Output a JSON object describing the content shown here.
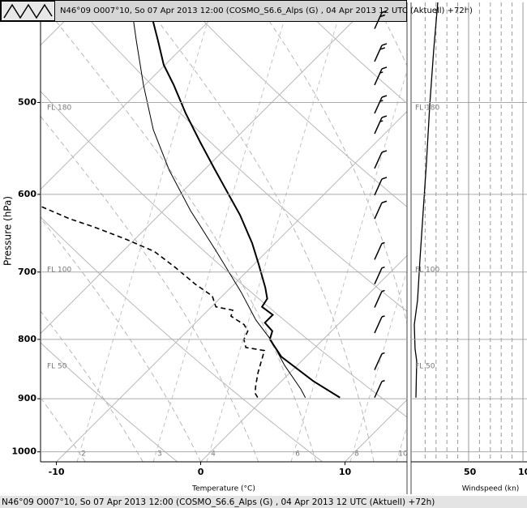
{
  "header": {
    "title": "N46°09 O007°10, So 07 Apr 2013 12:00 (COSMO_S6.6_Alps (G) , 04 Apr 2013 12 UTC (Aktuell) +72h)"
  },
  "footer": {
    "title": "N46°09 O007°10, So 07 Apr 2013 12:00 (COSMO_S6.6_Alps (G) , 04 Apr 2013 12 UTC (Aktuell) +72h)"
  },
  "chart_data": {
    "type": "skewt",
    "ylabel": "Pressure (hPa)",
    "xlabel": "Temperature (°C)",
    "ylog": true,
    "ylim": [
      1020,
      410
    ],
    "yticks": [
      500,
      600,
      700,
      800,
      900,
      1000
    ],
    "xlim": [
      -11.1,
      14.3
    ],
    "xticks": [
      -10,
      0,
      10
    ],
    "flight_levels": [
      "FL 180",
      "FL 100",
      "FL 50"
    ],
    "mixing_ratio_labels": [
      2,
      3,
      4,
      6,
      8,
      10
    ],
    "series": [
      {
        "color": "#000000",
        "width": 2,
        "dash": false,
        "pressure": [
          410,
          442,
          464,
          483,
          511,
          541,
          570,
          598,
          625,
          661,
          689,
          722,
          738,
          750,
          762,
          774,
          787,
          800,
          828,
          869,
          898
        ],
        "values": [
          -35.5,
          -32.2,
          -30.1,
          -28.0,
          -25.2,
          -22.2,
          -19.4,
          -16.8,
          -14.4,
          -11.6,
          -9.7,
          -7.6,
          -6.7,
          -6.5,
          -5.2,
          -5.2,
          -4.1,
          -3.7,
          -1.7,
          2.2,
          5.2
        ]
      },
      {
        "color": "#000000",
        "width": 1,
        "dash": false,
        "pressure": [
          410,
          442,
          483,
          528,
          572,
          620,
          672,
          728,
          770,
          802,
          842,
          883,
          898
        ],
        "values": [
          -36.7,
          -33.7,
          -30.1,
          -26.3,
          -22.4,
          -18.1,
          -13.5,
          -9.0,
          -6.0,
          -3.5,
          -0.9,
          1.9,
          2.8
        ]
      },
      {
        "color": "#000000",
        "width": 1.6,
        "dash": true,
        "pressure": [
          615,
          630,
          640,
          656,
          672,
          694,
          717,
          734,
          750,
          755,
          764,
          777,
          787,
          800,
          813,
          818,
          855,
          876,
          890,
          898
        ],
        "values": [
          -28.7,
          -25.9,
          -23.7,
          -20.6,
          -17.8,
          -15.2,
          -12.7,
          -10.7,
          -9.7,
          -8.3,
          -8.0,
          -6.5,
          -5.8,
          -5.5,
          -4.8,
          -3.3,
          -2.2,
          -1.5,
          -1.0,
          -0.5
        ]
      }
    ],
    "barbs": {
      "pressure": [
        432,
        461,
        483,
        511,
        532,
        570,
        601,
        630,
        683,
        717,
        751,
        790,
        850,
        898
      ],
      "speed": [
        20,
        20,
        15,
        15,
        15,
        10,
        10,
        10,
        5,
        5,
        5,
        5,
        5,
        5
      ]
    },
    "wind": {
      "xlabel": "Windspeed (kn)",
      "xlim": [
        0,
        100
      ],
      "xticks": [
        50,
        100
      ],
      "xgrid": [
        10,
        20,
        30,
        40,
        60,
        70,
        80,
        90
      ],
      "pressure": [
        410,
        450,
        503,
        563,
        620,
        683,
        740,
        777,
        815,
        835,
        898
      ],
      "values": [
        21.6,
        17.9,
        14.2,
        11.2,
        8.2,
        5.2,
        3.0,
        0,
        0.7,
        2.2,
        1.5
      ]
    }
  }
}
